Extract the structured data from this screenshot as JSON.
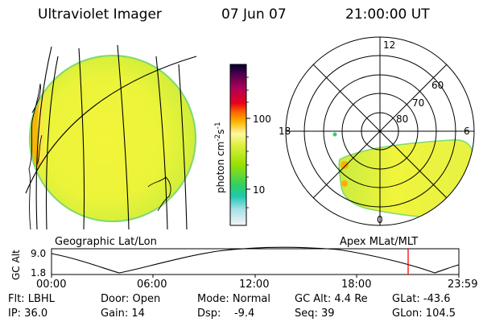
{
  "header": {
    "instrument": "Ultraviolet Imager",
    "date": "07 Jun 07",
    "time": "21:00:00 UT"
  },
  "left_panel": {
    "label": "Geographic Lat/Lon"
  },
  "right_panel": {
    "label": "Apex MLat/MLT",
    "mlt_labels": {
      "top": "12",
      "left": "18",
      "right": "6",
      "bottom": "0"
    },
    "lat_labels": [
      "60",
      "70",
      "80"
    ]
  },
  "colorbar": {
    "unit_text": "photon cm",
    "unit_exp1": "-2",
    "unit_mid": "s",
    "unit_exp2": "-1",
    "tick_labels": [
      "100",
      "10"
    ],
    "scale": "log",
    "colors": [
      "#000030",
      "#5a0050",
      "#b0005a",
      "#e8001a",
      "#ff6a00",
      "#ffb800",
      "#fff8a0",
      "#e0f040",
      "#9be000",
      "#30d060",
      "#20c8b0",
      "#a8e0ea",
      "#f4f4f4"
    ]
  },
  "altitude_plot": {
    "ylabel": "GC Alt",
    "ymax_label": "9.0",
    "ymin_label": "1.8",
    "x_ticks": [
      "00:00",
      "06:00",
      "12:00",
      "18:00",
      "23:59"
    ],
    "current_time_marker": "21:00",
    "marker_color": "#ff0000"
  },
  "footer": {
    "row1": {
      "filter": "Flt: LBHL",
      "door": "Door: Open",
      "mode": "Mode: Normal",
      "gc_alt": "GC Alt: 4.4 Re",
      "glat": "GLat: -43.6"
    },
    "row2": {
      "ip": "IP: 36.0",
      "gain": "Gain: 14",
      "dsp": "Dsp:    -9.4",
      "seq": "Seq: 39",
      "glon": "GLon: 104.5"
    }
  }
}
